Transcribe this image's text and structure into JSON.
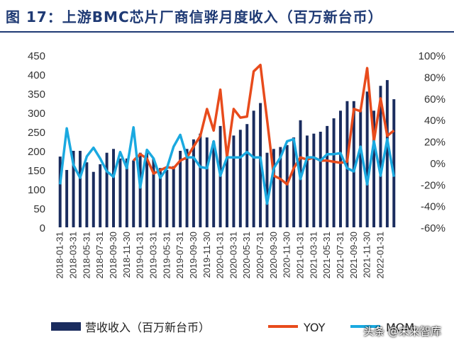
{
  "title": "图 17：上游BMC芯片厂商信骅月度收入（百万新台币）",
  "watermark": "头条 @未来智库",
  "colors": {
    "bar": "#1a2c5e",
    "yoy": "#e84b1c",
    "mom": "#1aa9e0",
    "title": "#1f3a74"
  },
  "chart_data": {
    "type": "bar",
    "categories": [
      "2018-01-31",
      "2018-02-28",
      "2018-03-31",
      "2018-04-30",
      "2018-05-31",
      "2018-06-30",
      "2018-07-31",
      "2018-08-31",
      "2018-09-30",
      "2018-10-31",
      "2018-11-30",
      "2018-12-31",
      "2019-01-31",
      "2019-02-28",
      "2019-03-31",
      "2019-04-30",
      "2019-05-31",
      "2019-06-30",
      "2019-07-31",
      "2019-08-31",
      "2019-09-30",
      "2019-10-31",
      "2019-11-30",
      "2019-12-31",
      "2020-01-31",
      "2020-02-29",
      "2020-03-31",
      "2020-04-30",
      "2020-05-31",
      "2020-06-30",
      "2020-07-31",
      "2020-08-31",
      "2020-09-30",
      "2020-10-31",
      "2020-11-30",
      "2020-12-31",
      "2021-01-31",
      "2021-02-28",
      "2021-03-31",
      "2021-04-30",
      "2021-05-31",
      "2021-06-30",
      "2021-07-31",
      "2021-08-31",
      "2021-09-30",
      "2021-10-31",
      "2021-11-30",
      "2021-12-31",
      "2022-01-31",
      "2022-02-28",
      "2022-03-31"
    ],
    "xtick_labels": [
      "2018-01-31",
      "2018-03-31",
      "2018-05-31",
      "2018-07-31",
      "2018-09-30",
      "2018-11-30",
      "2019-01-31",
      "2019-03-31",
      "2019-05-31",
      "2019-07-31",
      "2019-09-30",
      "2019-11-30",
      "2020-01-31",
      "2020-03-31",
      "2020-05-31",
      "2020-07-31",
      "2020-09-30",
      "2020-11-30",
      "2021-01-31",
      "2021-03-31",
      "2021-05-31",
      "2021-07-31",
      "2021-09-30",
      "2021-11-30",
      "2022-01-31"
    ],
    "ylim_left": [
      0,
      450
    ],
    "yticks_left": [
      "0",
      "50",
      "100",
      "150",
      "200",
      "250",
      "300",
      "350",
      "400",
      "450"
    ],
    "ylim_right": [
      -60,
      100
    ],
    "yticks_right": [
      "-60%",
      "-40%",
      "-20%",
      "0%",
      "20%",
      "40%",
      "60%",
      "80%",
      "100%"
    ],
    "series": [
      {
        "name": "营收收入（百万新台币）",
        "type": "bar",
        "values": [
          185,
          150,
          200,
          200,
          170,
          145,
          165,
          195,
          205,
          180,
          180,
          175,
          195,
          200,
          180,
          155,
          150,
          160,
          200,
          205,
          230,
          245,
          235,
          225,
          265,
          205,
          240,
          255,
          270,
          305,
          325,
          195,
          205,
          210,
          215,
          235,
          280,
          240,
          245,
          250,
          265,
          285,
          305,
          330,
          330,
          305,
          355,
          305,
          370,
          385,
          335
        ]
      },
      {
        "name": "YOY",
        "type": "line",
        "values": [
          null,
          null,
          null,
          null,
          null,
          null,
          null,
          null,
          null,
          null,
          null,
          2,
          8,
          4,
          -10,
          -7,
          -4,
          -5,
          2,
          5,
          15,
          25,
          50,
          30,
          68,
          5,
          50,
          42,
          43,
          85,
          91,
          40,
          -12,
          -15,
          -20,
          -5,
          5,
          3,
          5,
          2,
          2,
          1,
          0,
          1,
          50,
          48,
          88,
          20,
          60,
          25,
          30
        ]
      },
      {
        "name": "MOM",
        "type": "line",
        "values": [
          -20,
          32,
          -2,
          -14,
          6,
          14,
          4,
          -8,
          -13,
          10,
          -5,
          33,
          -23,
          12,
          4,
          -14,
          -5,
          15,
          26,
          5,
          5,
          -4,
          -5,
          20,
          -12,
          5,
          5,
          5,
          10,
          5,
          5,
          -38,
          -5,
          5,
          20,
          22,
          -15,
          5,
          5,
          2,
          8,
          8,
          9,
          -5,
          -8,
          15,
          -20,
          20,
          -12,
          22,
          -13
        ]
      }
    ],
    "legend_position": "bottom",
    "grid": false
  }
}
